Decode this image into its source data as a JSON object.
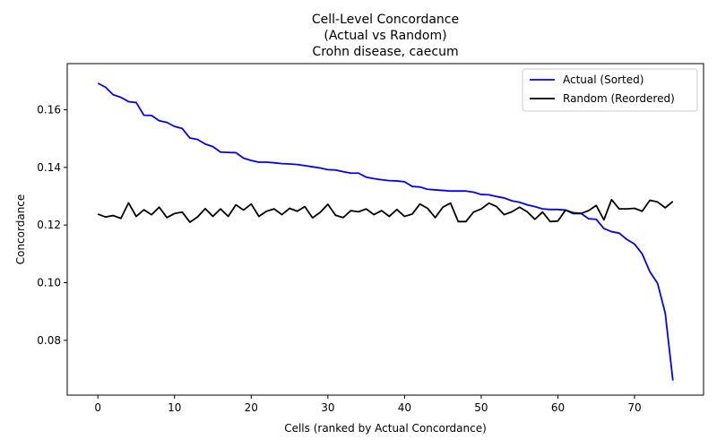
{
  "chart_data": {
    "type": "line",
    "title_lines": [
      "Cell-Level Concordance",
      "(Actual vs Random)",
      "Crohn disease, caecum"
    ],
    "xlabel": "Cells (ranked by Actual Concordance)",
    "ylabel": "Concordance",
    "xlim": [
      -4,
      79
    ],
    "ylim": [
      0.061,
      0.176
    ],
    "xticks": [
      0,
      10,
      20,
      30,
      40,
      50,
      60,
      70
    ],
    "yticks": [
      0.08,
      0.1,
      0.12,
      0.14,
      0.16
    ],
    "ytick_labels": [
      "0.08",
      "0.10",
      "0.12",
      "0.14",
      "0.16"
    ],
    "legend_position": "top-right",
    "series": [
      {
        "name": "Actual (Sorted)",
        "color": "#0000ff",
        "values": [
          0.1692,
          0.1678,
          0.1652,
          0.1643,
          0.1628,
          0.1625,
          0.1581,
          0.158,
          0.1562,
          0.1556,
          0.1542,
          0.1535,
          0.1502,
          0.1497,
          0.1481,
          0.1472,
          0.1453,
          0.1452,
          0.1451,
          0.1432,
          0.1424,
          0.1418,
          0.1418,
          0.1416,
          0.1413,
          0.1412,
          0.141,
          0.1406,
          0.1402,
          0.1398,
          0.1392,
          0.1391,
          0.1385,
          0.138,
          0.138,
          0.1366,
          0.1361,
          0.1357,
          0.1354,
          0.1353,
          0.135,
          0.1334,
          0.1332,
          0.1324,
          0.1322,
          0.132,
          0.1318,
          0.1318,
          0.1318,
          0.1314,
          0.1306,
          0.1305,
          0.1299,
          0.1294,
          0.1284,
          0.1279,
          0.127,
          0.1264,
          0.1256,
          0.1254,
          0.1254,
          0.1252,
          0.1243,
          0.1241,
          0.1222,
          0.122,
          0.1188,
          0.1177,
          0.1172,
          0.115,
          0.1134,
          0.11,
          0.1038,
          0.0998,
          0.0895,
          0.0661
        ]
      },
      {
        "name": "Random (Reordered)",
        "color": "#000000",
        "values": [
          0.1238,
          0.1228,
          0.1233,
          0.1223,
          0.1277,
          0.123,
          0.1253,
          0.1236,
          0.1262,
          0.1226,
          0.124,
          0.1245,
          0.121,
          0.1228,
          0.1257,
          0.123,
          0.1256,
          0.123,
          0.127,
          0.1252,
          0.1273,
          0.123,
          0.1248,
          0.1256,
          0.1236,
          0.1258,
          0.1248,
          0.1264,
          0.1225,
          0.1244,
          0.1272,
          0.1234,
          0.1226,
          0.125,
          0.1246,
          0.1256,
          0.1236,
          0.125,
          0.123,
          0.1254,
          0.123,
          0.1238,
          0.1273,
          0.1258,
          0.1226,
          0.1262,
          0.1276,
          0.1212,
          0.1212,
          0.1245,
          0.1256,
          0.1276,
          0.1264,
          0.1236,
          0.1246,
          0.1262,
          0.1246,
          0.122,
          0.1245,
          0.1212,
          0.1214,
          0.1252,
          0.124,
          0.124,
          0.125,
          0.1268,
          0.1218,
          0.1288,
          0.1256,
          0.1256,
          0.1258,
          0.1248,
          0.1286,
          0.128,
          0.126,
          0.1282
        ]
      }
    ]
  }
}
